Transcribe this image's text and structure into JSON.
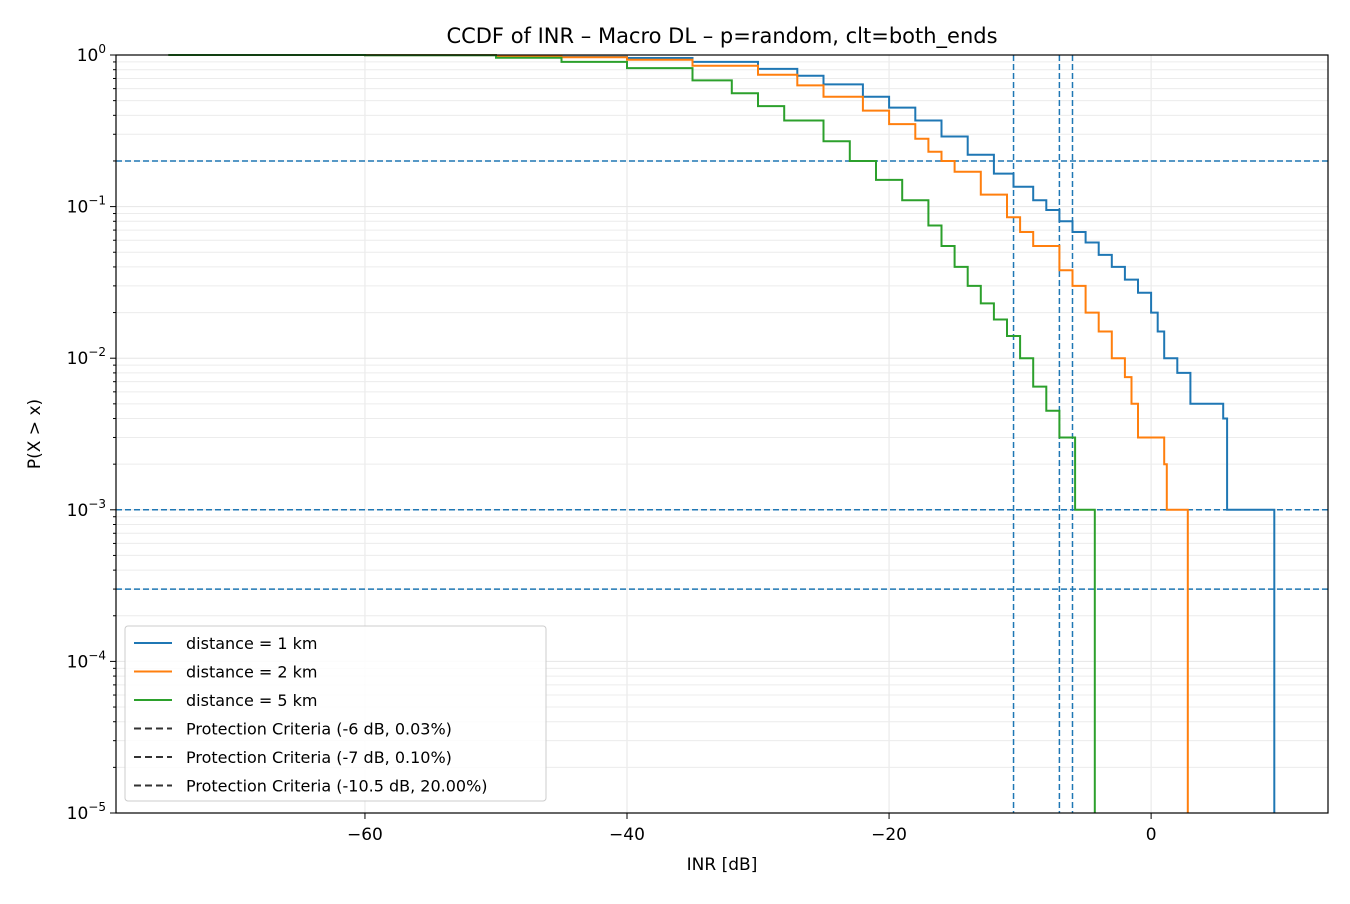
{
  "chart_data": {
    "type": "line",
    "title": "CCDF of INR – Macro DL – p=random, clt=both_ends",
    "xlabel": "INR [dB]",
    "ylabel": "P(X > x)",
    "y_scale": "log",
    "xlim": [
      -79,
      13.5
    ],
    "ylim": [
      1e-05,
      1
    ],
    "grid": true,
    "legend_position": "lower-left",
    "x_ticks": [
      {
        "value": -60,
        "label": "−60"
      },
      {
        "value": -40,
        "label": "−40"
      },
      {
        "value": -20,
        "label": "−20"
      },
      {
        "value": 0,
        "label": "0"
      }
    ],
    "y_ticks": [
      {
        "value": 1,
        "base": "10",
        "exp": "0"
      },
      {
        "value": 0.1,
        "base": "10",
        "exp": "−1"
      },
      {
        "value": 0.01,
        "base": "10",
        "exp": "−2"
      },
      {
        "value": 0.001,
        "base": "10",
        "exp": "−3"
      },
      {
        "value": 0.0001,
        "base": "10",
        "exp": "−4"
      },
      {
        "value": 1e-05,
        "base": "10",
        "exp": "−5"
      }
    ],
    "y_tick_top_label": "1",
    "series": [
      {
        "name": "distance = 1 km",
        "color": "#1f77b4",
        "points": [
          [
            -75,
            1
          ],
          [
            -60,
            0.999
          ],
          [
            -50,
            0.99
          ],
          [
            -45,
            0.975
          ],
          [
            -40,
            0.955
          ],
          [
            -35,
            0.9
          ],
          [
            -30,
            0.81
          ],
          [
            -27,
            0.73
          ],
          [
            -25,
            0.64
          ],
          [
            -22,
            0.53
          ],
          [
            -20,
            0.45
          ],
          [
            -18,
            0.37
          ],
          [
            -16,
            0.29
          ],
          [
            -14,
            0.22
          ],
          [
            -12,
            0.165
          ],
          [
            -10.5,
            0.135
          ],
          [
            -9,
            0.11
          ],
          [
            -8,
            0.095
          ],
          [
            -7,
            0.08
          ],
          [
            -6,
            0.068
          ],
          [
            -5,
            0.058
          ],
          [
            -4,
            0.048
          ],
          [
            -3,
            0.04
          ],
          [
            -2,
            0.033
          ],
          [
            -1,
            0.027
          ],
          [
            0,
            0.02
          ],
          [
            0.5,
            0.015
          ],
          [
            1,
            0.01
          ],
          [
            2,
            0.008
          ],
          [
            3,
            0.005
          ],
          [
            5,
            0.005
          ],
          [
            5.5,
            0.004
          ],
          [
            5.8,
            0.002
          ],
          [
            5.8,
            0.001
          ],
          [
            9.4,
            0.001
          ],
          [
            9.4,
            1e-05
          ]
        ]
      },
      {
        "name": "distance = 2 km",
        "color": "#ff7f0e",
        "points": [
          [
            -75,
            1
          ],
          [
            -60,
            0.998
          ],
          [
            -50,
            0.985
          ],
          [
            -45,
            0.965
          ],
          [
            -40,
            0.93
          ],
          [
            -35,
            0.85
          ],
          [
            -30,
            0.74
          ],
          [
            -27,
            0.63
          ],
          [
            -25,
            0.53
          ],
          [
            -22,
            0.43
          ],
          [
            -20,
            0.35
          ],
          [
            -18,
            0.28
          ],
          [
            -17,
            0.23
          ],
          [
            -16,
            0.2
          ],
          [
            -15,
            0.17
          ],
          [
            -13,
            0.12
          ],
          [
            -11,
            0.085
          ],
          [
            -10,
            0.068
          ],
          [
            -9,
            0.055
          ],
          [
            -7,
            0.038
          ],
          [
            -6,
            0.03
          ],
          [
            -5,
            0.02
          ],
          [
            -4,
            0.015
          ],
          [
            -3,
            0.01
          ],
          [
            -2,
            0.0075
          ],
          [
            -1.5,
            0.005
          ],
          [
            -1,
            0.003
          ],
          [
            0,
            0.003
          ],
          [
            1,
            0.002
          ],
          [
            1.2,
            0.001
          ],
          [
            2.8,
            0.001
          ],
          [
            2.8,
            1e-05
          ]
        ]
      },
      {
        "name": "distance = 5 km",
        "color": "#2ca02c",
        "points": [
          [
            -75,
            1
          ],
          [
            -60,
            0.995
          ],
          [
            -50,
            0.96
          ],
          [
            -45,
            0.9
          ],
          [
            -40,
            0.82
          ],
          [
            -35,
            0.68
          ],
          [
            -32,
            0.56
          ],
          [
            -30,
            0.46
          ],
          [
            -28,
            0.37
          ],
          [
            -25,
            0.27
          ],
          [
            -23,
            0.2
          ],
          [
            -21,
            0.15
          ],
          [
            -19,
            0.11
          ],
          [
            -17,
            0.075
          ],
          [
            -16,
            0.055
          ],
          [
            -15,
            0.04
          ],
          [
            -14,
            0.03
          ],
          [
            -13,
            0.023
          ],
          [
            -12,
            0.018
          ],
          [
            -11,
            0.014
          ],
          [
            -10,
            0.01
          ],
          [
            -9,
            0.0065
          ],
          [
            -8,
            0.0045
          ],
          [
            -7,
            0.003
          ],
          [
            -6,
            0.003
          ],
          [
            -5.8,
            0.002
          ],
          [
            -5.8,
            0.001
          ],
          [
            -4.3,
            0.001
          ],
          [
            -4.3,
            1e-05
          ]
        ]
      }
    ],
    "reference_lines": [
      {
        "orientation": "horizontal",
        "value": 0.2
      },
      {
        "orientation": "horizontal",
        "value": 0.001
      },
      {
        "orientation": "horizontal",
        "value": 0.0003
      },
      {
        "orientation": "vertical",
        "value": -10.5
      },
      {
        "orientation": "vertical",
        "value": -7
      },
      {
        "orientation": "vertical",
        "value": -6
      }
    ],
    "legend": [
      {
        "label": "distance = 1 km",
        "color": "#1f77b4",
        "style": "solid"
      },
      {
        "label": "distance = 2 km",
        "color": "#ff7f0e",
        "style": "solid"
      },
      {
        "label": "distance = 5 km",
        "color": "#2ca02c",
        "style": "solid"
      },
      {
        "label": "Protection Criteria (-6 dB, 0.03%)",
        "color": "#333333",
        "style": "dashed"
      },
      {
        "label": "Protection Criteria (-7 dB, 0.10%)",
        "color": "#333333",
        "style": "dashed"
      },
      {
        "label": "Protection Criteria (-10.5 dB, 20.00%)",
        "color": "#333333",
        "style": "dashed"
      }
    ]
  }
}
